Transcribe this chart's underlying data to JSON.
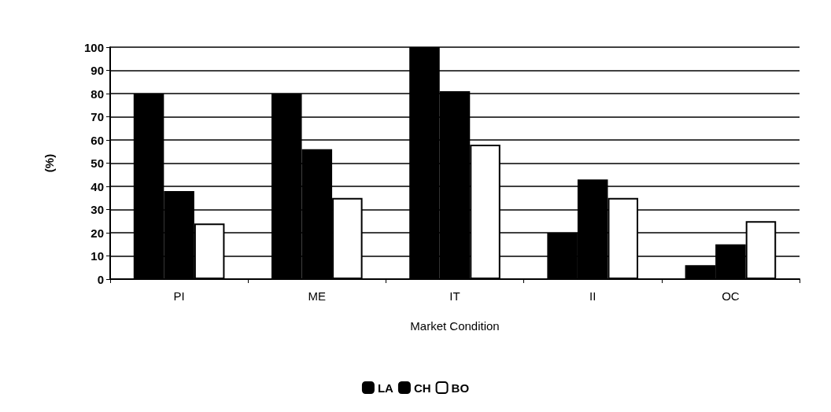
{
  "chart_data": {
    "type": "bar",
    "xlabel": "Market Condition",
    "ylabel": "(%)",
    "categories": [
      "PI",
      "ME",
      "IT",
      "II",
      "OC"
    ],
    "series": [
      {
        "name": "LA",
        "color": "#000000",
        "values": [
          80,
          80,
          100,
          20,
          6
        ]
      },
      {
        "name": "CH",
        "color": "#000000",
        "values": [
          38,
          56,
          81,
          43,
          15
        ]
      },
      {
        "name": "BO",
        "color": "#ffffff",
        "values": [
          24,
          35,
          58,
          35,
          25
        ]
      }
    ],
    "ylim": [
      0,
      100
    ],
    "yticks": [
      0,
      10,
      20,
      30,
      40,
      50,
      60,
      70,
      80,
      90,
      100
    ],
    "grid": "y",
    "legend": "bottom"
  }
}
